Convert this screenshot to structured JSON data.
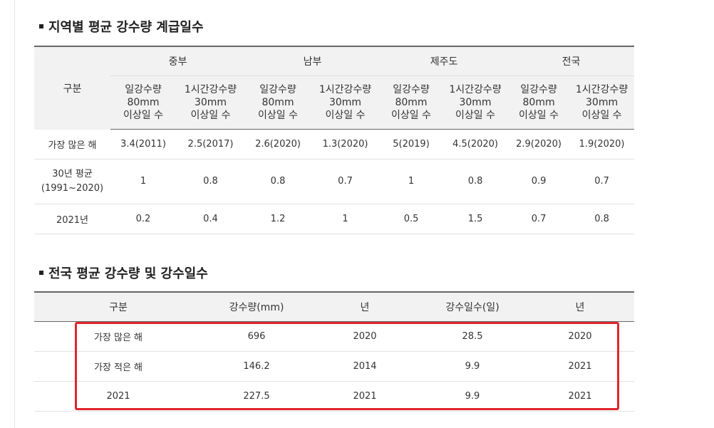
{
  "section1": {
    "title": "지역별 평균 강수량 계급일수",
    "header_label": "구분",
    "regions": [
      "중부",
      "남부",
      "제주도",
      "전국"
    ],
    "sub_headers": [
      [
        "일강수량",
        "80mm",
        "이상일 수"
      ],
      [
        "1시간강수량",
        "30mm",
        "이상일 수"
      ],
      [
        "일강수량",
        "80mm",
        "이상일 수"
      ],
      [
        "1시간강수량",
        "30mm",
        "이상일 수"
      ],
      [
        "일강수량",
        "80mm",
        "이상일 수"
      ],
      [
        "1시간강수량",
        "30mm",
        "이상일 수"
      ],
      [
        "일강수량",
        "80mm",
        "이상일 수"
      ],
      [
        "1시간강수량",
        "30mm",
        "이상일 수"
      ]
    ],
    "rows": [
      {
        "label": [
          "가장 많은 해"
        ],
        "values": [
          "3.4(2011)",
          "2.5(2017)",
          "2.6(2020)",
          "1.3(2020)",
          "5(2019)",
          "4.5(2020)",
          "2.9(2020)",
          "1.9(2020)"
        ]
      },
      {
        "label": [
          "30년 평균",
          "(1991~2020)"
        ],
        "values": [
          "1",
          "0.8",
          "0.8",
          "0.7",
          "1",
          "0.8",
          "0.9",
          "0.7"
        ]
      },
      {
        "label": [
          "2021년"
        ],
        "values": [
          "0.2",
          "0.4",
          "1.2",
          "1",
          "0.5",
          "1.5",
          "0.7",
          "0.8"
        ]
      }
    ]
  },
  "section2": {
    "title": "전국 평균 강수량 및 강수일수",
    "headers": [
      "구분",
      "강수량(mm)",
      "년",
      "강수일수(일)",
      "년"
    ],
    "rows": [
      [
        "가장 많은 해",
        "696",
        "2020",
        "28.5",
        "2020"
      ],
      [
        "가장 적은 해",
        "146.2",
        "2014",
        "9.9",
        "2021"
      ],
      [
        "2021",
        "227.5",
        "2021",
        "9.9",
        "2021"
      ]
    ]
  },
  "colors": {
    "highlight_border": "#e1262d",
    "header_bg": "#f2f2f2"
  }
}
